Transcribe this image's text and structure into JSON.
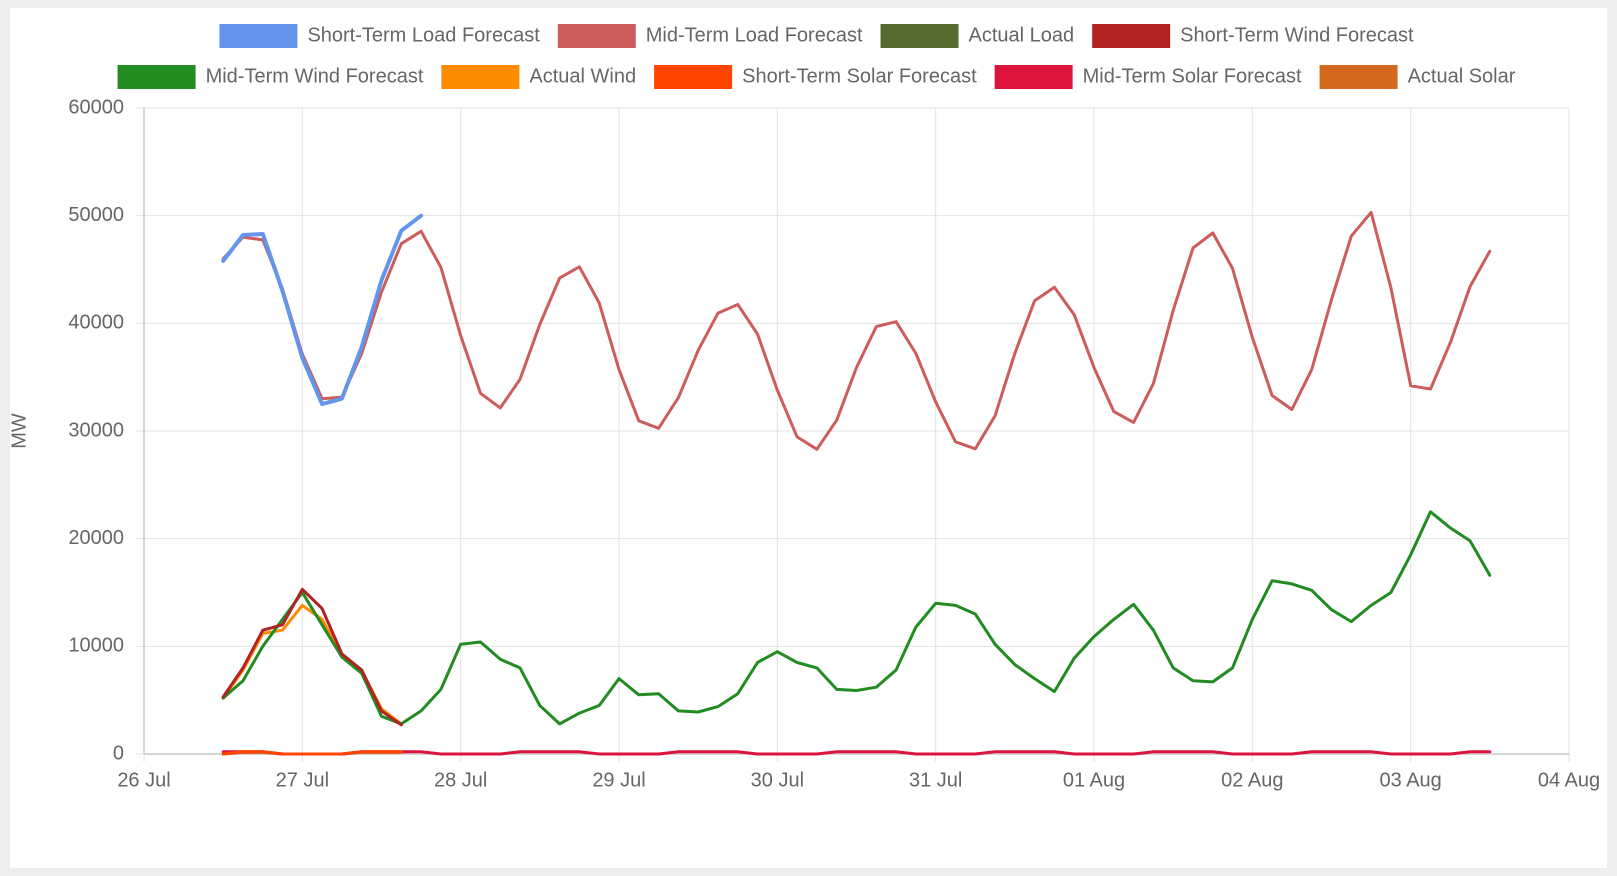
{
  "chart_data": {
    "type": "line",
    "y_label": "MW",
    "xlim": [
      0,
      9
    ],
    "xticks": [
      {
        "value": 0,
        "label": "26 Jul"
      },
      {
        "value": 1,
        "label": "27 Jul"
      },
      {
        "value": 2,
        "label": "28 Jul"
      },
      {
        "value": 3,
        "label": "29 Jul"
      },
      {
        "value": 4,
        "label": "30 Jul"
      },
      {
        "value": 5,
        "label": "31 Jul"
      },
      {
        "value": 6,
        "label": "01 Aug"
      },
      {
        "value": 7,
        "label": "02 Aug"
      },
      {
        "value": 8,
        "label": "03 Aug"
      },
      {
        "value": 9,
        "label": "04 Aug"
      }
    ],
    "ylim": [
      0,
      60000
    ],
    "yticks": [
      0,
      10000,
      20000,
      30000,
      40000,
      50000,
      60000
    ],
    "grid": true,
    "legend": "top",
    "x": [
      0.5,
      0.625,
      0.75,
      0.875,
      1,
      1.125,
      1.25,
      1.375,
      1.5,
      1.625,
      1.75,
      1.875,
      2,
      2.125,
      2.25,
      2.375,
      2.5,
      2.625,
      2.75,
      2.875,
      3,
      3.125,
      3.25,
      3.375,
      3.5,
      3.625,
      3.75,
      3.875,
      4,
      4.125,
      4.25,
      4.375,
      4.5,
      4.625,
      4.75,
      4.875,
      5,
      5.125,
      5.25,
      5.375,
      5.5,
      5.625,
      5.75,
      5.875,
      6,
      6.125,
      6.25,
      6.375,
      6.5,
      6.625,
      6.75,
      6.875,
      7,
      7.125,
      7.25,
      7.375,
      7.5,
      7.625,
      7.75,
      7.875,
      8,
      8.125,
      8.25,
      8.375,
      8.5
    ],
    "series": [
      {
        "name": "Short-Term Load Forecast",
        "color": "#6495ed",
        "values": [
          45800,
          48200,
          48300,
          43000,
          36800,
          32500,
          33000,
          37800,
          44000,
          48600,
          50000,
          null,
          null,
          null,
          null,
          null,
          null,
          null,
          null,
          null,
          null,
          null,
          null,
          null,
          null,
          null,
          null,
          null,
          null,
          null,
          null,
          null,
          null,
          null,
          null,
          null,
          null,
          null,
          null,
          null,
          null,
          null,
          null,
          null,
          null,
          null,
          null,
          null,
          null,
          null,
          null,
          null,
          null,
          null,
          null,
          null,
          null,
          null,
          null,
          null,
          null,
          null,
          null,
          null,
          null
        ]
      },
      {
        "name": "Mid-Term Load Forecast",
        "color": "#cd5c5c",
        "values": [
          46000,
          48000,
          47750,
          43200,
          37150,
          33000,
          33150,
          37200,
          42900,
          47400,
          48550,
          45200,
          38850,
          33500,
          32150,
          34800,
          39900,
          44200,
          45250,
          41900,
          35700,
          30950,
          30250,
          33100,
          37500,
          40950,
          41750,
          39000,
          33800,
          29450,
          28300,
          31000,
          35900,
          39700,
          40150,
          37200,
          32700,
          29000,
          28350,
          31400,
          37200,
          42100,
          43350,
          40800,
          35900,
          31800,
          30800,
          34400,
          41200,
          47000,
          48400,
          45100,
          38700,
          33300,
          32000,
          35700,
          42200,
          48100,
          50300,
          43300,
          34200,
          33900,
          38200,
          43400,
          46700
        ]
      },
      {
        "name": "Actual Load",
        "color": "#556b2f",
        "values": [
          null,
          null,
          null,
          null,
          null,
          null,
          null,
          null,
          null,
          null,
          null,
          null,
          null,
          null,
          null,
          null,
          null,
          null,
          null,
          null,
          null,
          null,
          null,
          null,
          null,
          null,
          null,
          null,
          null,
          null,
          null,
          null,
          null,
          null,
          null,
          null,
          null,
          null,
          null,
          null,
          null,
          null,
          null,
          null,
          null,
          null,
          null,
          null,
          null,
          null,
          null,
          null,
          null,
          null,
          null,
          null,
          null,
          null,
          null,
          null,
          null,
          null,
          null,
          null,
          null
        ]
      },
      {
        "name": "Short-Term Wind Forecast",
        "color": "#b22222",
        "values": [
          5300,
          8000,
          11500,
          12000,
          15300,
          13500,
          9300,
          7800,
          4000,
          2700,
          null,
          null,
          null,
          null,
          null,
          null,
          null,
          null,
          null,
          null,
          null,
          null,
          null,
          null,
          null,
          null,
          null,
          null,
          null,
          null,
          null,
          null,
          null,
          null,
          null,
          null,
          null,
          null,
          null,
          null,
          null,
          null,
          null,
          null,
          null,
          null,
          null,
          null,
          null,
          null,
          null,
          null,
          null,
          null,
          null,
          null,
          null,
          null,
          null,
          null,
          null,
          null,
          null,
          null,
          null
        ]
      },
      {
        "name": "Mid-Term Wind Forecast",
        "color": "#228b22",
        "values": [
          5200,
          6800,
          10000,
          12500,
          15000,
          12000,
          9000,
          7500,
          3500,
          2800,
          4000,
          6000,
          10200,
          10400,
          8800,
          8000,
          4500,
          2800,
          3800,
          4500,
          7000,
          5500,
          5600,
          4000,
          3900,
          4400,
          5600,
          8500,
          9500,
          8500,
          8000,
          6000,
          5900,
          6200,
          7800,
          11800,
          14000,
          13800,
          13000,
          10200,
          8300,
          7000,
          5800,
          8900,
          10900,
          12500,
          13900,
          11500,
          8000,
          6800,
          6700,
          8000,
          12500,
          16100,
          15800,
          15200,
          13400,
          12300,
          13800,
          15000,
          18500,
          22500,
          21000,
          19800,
          16600
        ]
      },
      {
        "name": "Actual Wind",
        "color": "#ff8c00",
        "values": [
          5200,
          7800,
          11200,
          11500,
          13800,
          12500,
          9200,
          7700,
          4200,
          2800,
          null,
          null,
          null,
          null,
          null,
          null,
          null,
          null,
          null,
          null,
          null,
          null,
          null,
          null,
          null,
          null,
          null,
          null,
          null,
          null,
          null,
          null,
          null,
          null,
          null,
          null,
          null,
          null,
          null,
          null,
          null,
          null,
          null,
          null,
          null,
          null,
          null,
          null,
          null,
          null,
          null,
          null,
          null,
          null,
          null,
          null,
          null,
          null,
          null,
          null,
          null,
          null,
          null,
          null,
          null
        ]
      },
      {
        "name": "Short-Term Solar Forecast",
        "color": "#ff4500",
        "values": [
          0,
          200,
          200,
          0,
          0,
          0,
          0,
          200,
          200,
          200,
          null,
          null,
          null,
          null,
          null,
          null,
          null,
          null,
          null,
          null,
          null,
          null,
          null,
          null,
          null,
          null,
          null,
          null,
          null,
          null,
          null,
          null,
          null,
          null,
          null,
          null,
          null,
          null,
          null,
          null,
          null,
          null,
          null,
          null,
          null,
          null,
          null,
          null,
          null,
          null,
          null,
          null,
          null,
          null,
          null,
          null,
          null,
          null,
          null,
          null,
          null,
          null,
          null,
          null,
          null
        ]
      },
      {
        "name": "Mid-Term Solar Forecast",
        "color": "#dc143c",
        "values": [
          200,
          200,
          200,
          0,
          0,
          0,
          0,
          200,
          200,
          200,
          200,
          0,
          0,
          0,
          0,
          200,
          200,
          200,
          200,
          0,
          0,
          0,
          0,
          200,
          200,
          200,
          200,
          0,
          0,
          0,
          0,
          200,
          200,
          200,
          200,
          0,
          0,
          0,
          0,
          200,
          200,
          200,
          200,
          0,
          0,
          0,
          0,
          200,
          200,
          200,
          200,
          0,
          0,
          0,
          0,
          200,
          200,
          200,
          200,
          0,
          0,
          0,
          0,
          200,
          200
        ]
      },
      {
        "name": "Actual Solar",
        "color": "#d2691e",
        "values": [
          0,
          150,
          150,
          0,
          0,
          0,
          0,
          150,
          150,
          150,
          null,
          null,
          null,
          null,
          null,
          null,
          null,
          null,
          null,
          null,
          null,
          null,
          null,
          null,
          null,
          null,
          null,
          null,
          null,
          null,
          null,
          null,
          null,
          null,
          null,
          null,
          null,
          null,
          null,
          null,
          null,
          null,
          null,
          null,
          null,
          null,
          null,
          null,
          null,
          null,
          null,
          null,
          null,
          null,
          null,
          null,
          null,
          null,
          null,
          null,
          null,
          null,
          null,
          null,
          null
        ]
      }
    ]
  }
}
